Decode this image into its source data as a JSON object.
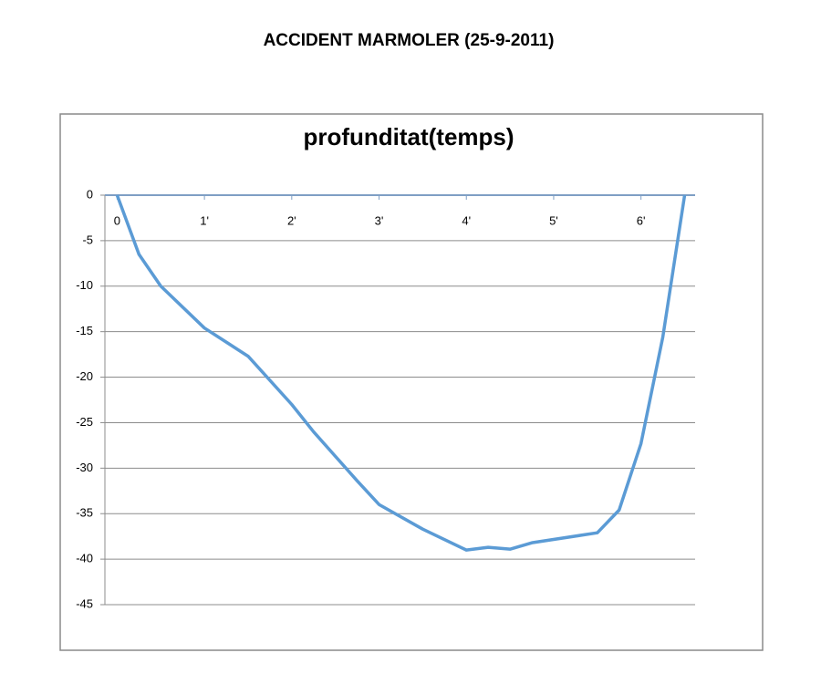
{
  "page_title": "ACCIDENT MARMOLER (25-9-2011)",
  "chart_data": {
    "type": "line",
    "title": "profunditat(temps)",
    "x": [
      0,
      0.25,
      0.5,
      1,
      1.5,
      2,
      2.25,
      2.5,
      2.75,
      3,
      3.5,
      4,
      4.25,
      4.5,
      4.75,
      5.5,
      5.75,
      6,
      6.25,
      6.5
    ],
    "values": [
      0,
      -6.5,
      -10,
      -14.6,
      -17.7,
      -23,
      -26,
      -28.7,
      -31.4,
      -34,
      -36.7,
      -39,
      -38.7,
      -38.9,
      -38.2,
      -37.1,
      -34.6,
      -27.3,
      -15.6,
      0
    ],
    "color": "#5b9bd5",
    "xlim": [
      -0.14,
      6.62
    ],
    "xticks": [
      0,
      {
        "value": 1,
        "label": "1'"
      },
      {
        "value": 2,
        "label": "2'"
      },
      {
        "value": 3,
        "label": "3'"
      },
      {
        "value": 4,
        "label": "4'"
      },
      {
        "value": 5,
        "label": "5'"
      },
      {
        "value": 6,
        "label": "6'"
      }
    ],
    "ylim": [
      -45,
      0
    ],
    "yticks": [
      0,
      -5,
      -10,
      -15,
      -20,
      -25,
      -30,
      -35,
      -40,
      -45
    ],
    "grid": true
  }
}
